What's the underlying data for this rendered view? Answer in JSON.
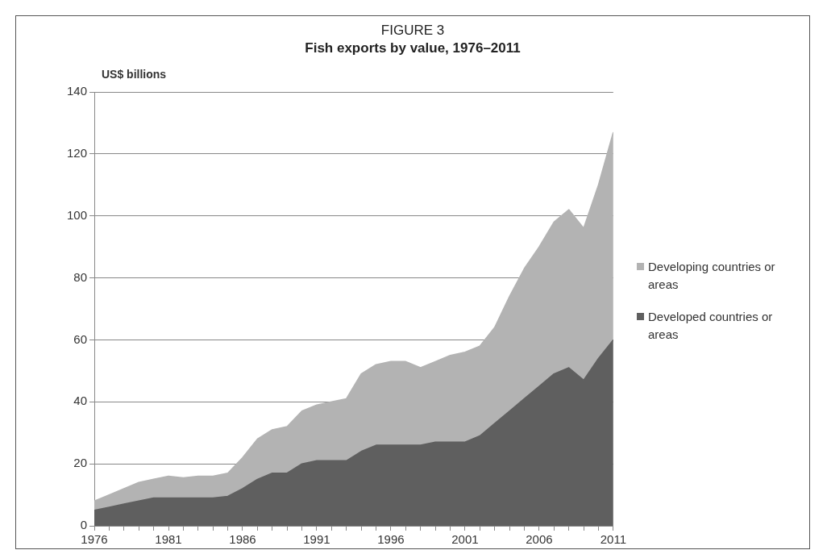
{
  "chart_data": {
    "type": "area",
    "stacked": true,
    "subtitle": "FIGURE 3",
    "title": "Fish exports by value, 1976–2011",
    "ylabel": "US$ billions",
    "x": [
      1976,
      1977,
      1978,
      1979,
      1980,
      1981,
      1982,
      1983,
      1984,
      1985,
      1986,
      1987,
      1988,
      1989,
      1990,
      1991,
      1992,
      1993,
      1994,
      1995,
      1996,
      1997,
      1998,
      1999,
      2000,
      2001,
      2002,
      2003,
      2004,
      2005,
      2006,
      2007,
      2008,
      2009,
      2010,
      2011
    ],
    "series": [
      {
        "name": "Developed countries or areas",
        "color": "#5f5f5f",
        "values": [
          5,
          6,
          7,
          8,
          9,
          9,
          9,
          9,
          9,
          9.5,
          12,
          15,
          17,
          17,
          20,
          21,
          21,
          21,
          24,
          26,
          26,
          26,
          26,
          27,
          27,
          27,
          29,
          33,
          37,
          41,
          45,
          49,
          51,
          47,
          54,
          60
        ]
      },
      {
        "name": "Developing countries or areas",
        "color": "#b3b3b3",
        "values": [
          3,
          4,
          5,
          6,
          6,
          7,
          6.5,
          7,
          7,
          7.5,
          10,
          13,
          14,
          15,
          17,
          18,
          19,
          20,
          25,
          26,
          27,
          27,
          25,
          26,
          28,
          29,
          29,
          31,
          37,
          42,
          45,
          49,
          51,
          49,
          56,
          67
        ]
      }
    ],
    "xlim": [
      1976,
      2011
    ],
    "xticks": [
      1976,
      {
        "value": 1977,
        "label": null
      },
      {
        "value": 1978,
        "label": null
      },
      {
        "value": 1979,
        "label": null
      },
      {
        "value": 1980,
        "label": null
      },
      1981,
      {
        "value": 1982,
        "label": null
      },
      {
        "value": 1983,
        "label": null
      },
      {
        "value": 1984,
        "label": null
      },
      {
        "value": 1985,
        "label": null
      },
      1986,
      {
        "value": 1987,
        "label": null
      },
      {
        "value": 1988,
        "label": null
      },
      {
        "value": 1989,
        "label": null
      },
      {
        "value": 1990,
        "label": null
      },
      1991,
      {
        "value": 1992,
        "label": null
      },
      {
        "value": 1993,
        "label": null
      },
      {
        "value": 1994,
        "label": null
      },
      {
        "value": 1995,
        "label": null
      },
      1996,
      {
        "value": 1997,
        "label": null
      },
      {
        "value": 1998,
        "label": null
      },
      {
        "value": 1999,
        "label": null
      },
      {
        "value": 2000,
        "label": null
      },
      2001,
      {
        "value": 2002,
        "label": null
      },
      {
        "value": 2003,
        "label": null
      },
      {
        "value": 2004,
        "label": null
      },
      {
        "value": 2005,
        "label": null
      },
      2006,
      {
        "value": 2007,
        "label": null
      },
      {
        "value": 2008,
        "label": null
      },
      {
        "value": 2009,
        "label": null
      },
      {
        "value": 2010,
        "label": null
      },
      2011
    ],
    "ylim": [
      0,
      140
    ],
    "yticks": [
      0,
      20,
      40,
      60,
      80,
      100,
      120,
      140
    ],
    "grid": "y",
    "legend": "right"
  }
}
